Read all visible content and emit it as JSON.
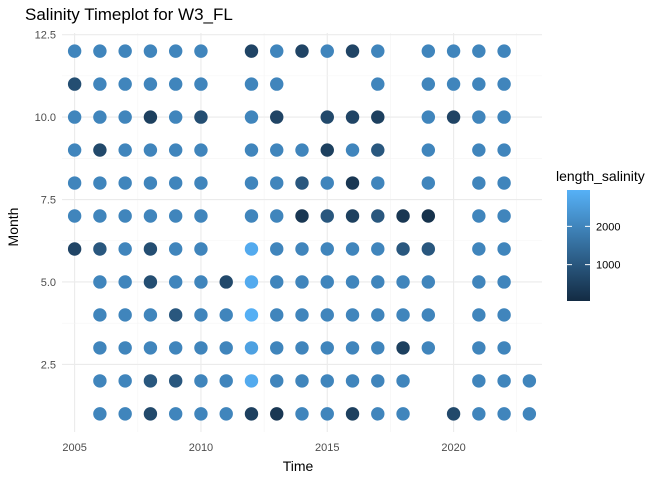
{
  "chart_data": {
    "type": "scatter",
    "title": "Salinity Timeplot for W3_FL",
    "xlabel": "Time",
    "ylabel": "Month",
    "xlim": [
      2004.5,
      2023.5
    ],
    "ylim": [
      0.45,
      12.55
    ],
    "x_ticks": [
      2005,
      2010,
      2015,
      2020
    ],
    "y_ticks": [
      2.5,
      5.0,
      7.5,
      10.0,
      12.5
    ],
    "y_tick_labels": [
      "2.5",
      "5.0",
      "7.5",
      "10.0",
      "12.5"
    ],
    "grid": true,
    "legend": {
      "title": "length_salinity",
      "position": "right",
      "range": [
        50,
        2950
      ],
      "ticks": [
        1000,
        2000
      ],
      "colors": [
        "#132B43",
        "#56B1F7"
      ]
    },
    "years": [
      2005,
      2006,
      2007,
      2008,
      2009,
      2010,
      2011,
      2012,
      2013,
      2014,
      2015,
      2016,
      2017,
      2018,
      2019,
      2020,
      2021,
      2022,
      2023
    ],
    "rows": [
      {
        "month": 12,
        "values": [
          2000,
          2000,
          2000,
          2000,
          2000,
          2000,
          null,
          600,
          2000,
          600,
          2000,
          600,
          2000,
          null,
          2000,
          2000,
          2000,
          2000,
          null
        ]
      },
      {
        "month": 11,
        "values": [
          800,
          2000,
          2000,
          2000,
          2000,
          2000,
          null,
          2000,
          2000,
          null,
          null,
          null,
          2000,
          null,
          2000,
          2000,
          2000,
          2000,
          null
        ]
      },
      {
        "month": 10,
        "values": [
          2000,
          2000,
          2000,
          500,
          2000,
          800,
          null,
          2000,
          600,
          null,
          700,
          600,
          500,
          null,
          2000,
          600,
          2000,
          2000,
          null
        ]
      },
      {
        "month": 9,
        "values": [
          2000,
          700,
          2000,
          2000,
          2000,
          2000,
          null,
          2000,
          2000,
          2000,
          500,
          2000,
          1000,
          null,
          2000,
          null,
          2000,
          2000,
          null
        ]
      },
      {
        "month": 8,
        "values": [
          2000,
          2000,
          2000,
          2000,
          2000,
          2000,
          null,
          2000,
          2000,
          1000,
          2000,
          300,
          2000,
          null,
          2000,
          null,
          2000,
          2000,
          null
        ]
      },
      {
        "month": 7,
        "values": [
          2000,
          2000,
          2000,
          2000,
          2000,
          2000,
          null,
          2000,
          2000,
          300,
          1000,
          500,
          1000,
          300,
          200,
          null,
          2000,
          2000,
          null
        ]
      },
      {
        "month": 6,
        "values": [
          600,
          1000,
          2000,
          800,
          2000,
          2000,
          null,
          2800,
          2000,
          2000,
          2000,
          2000,
          2000,
          1000,
          1000,
          null,
          2000,
          2000,
          null
        ]
      },
      {
        "month": 5,
        "values": [
          null,
          2000,
          2000,
          800,
          2000,
          2000,
          700,
          2800,
          2000,
          2000,
          2000,
          2000,
          2000,
          2000,
          2000,
          null,
          2000,
          2000,
          null
        ]
      },
      {
        "month": 4,
        "values": [
          null,
          2000,
          2000,
          2000,
          1000,
          2000,
          2000,
          2900,
          2000,
          2000,
          2000,
          2000,
          2000,
          2000,
          2000,
          null,
          2000,
          2000,
          null
        ]
      },
      {
        "month": 3,
        "values": [
          null,
          2000,
          2000,
          2000,
          2000,
          2000,
          2000,
          2600,
          2000,
          2000,
          2000,
          2000,
          2000,
          500,
          2000,
          null,
          2000,
          2000,
          null
        ]
      },
      {
        "month": 2,
        "values": [
          null,
          2000,
          2000,
          1000,
          1000,
          2000,
          2000,
          2800,
          2000,
          2000,
          2000,
          2000,
          2000,
          2000,
          null,
          null,
          2000,
          2000,
          2000
        ]
      },
      {
        "month": 1,
        "values": [
          null,
          2000,
          2000,
          700,
          2000,
          2000,
          2000,
          500,
          300,
          2000,
          2000,
          500,
          2000,
          2000,
          null,
          700,
          2000,
          2000,
          2000
        ]
      }
    ]
  }
}
